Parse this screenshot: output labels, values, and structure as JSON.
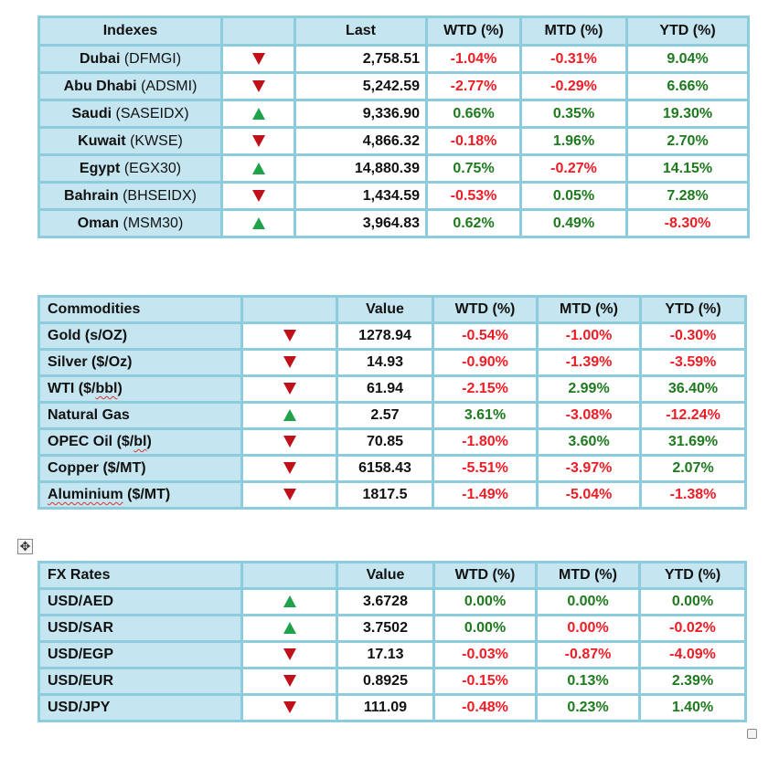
{
  "indexes": {
    "headers": [
      "Indexes",
      "",
      "Last",
      "WTD (%)",
      "MTD (%)",
      "YTD (%)"
    ],
    "rows": [
      {
        "name": "Dubai",
        "code": "(DFMGI)",
        "trend": "down",
        "last": "2,758.51",
        "wtd": "-1.04%",
        "mtd": "-0.31%",
        "ytd": "9.04%"
      },
      {
        "name": "Abu Dhabi",
        "code": "(ADSMI)",
        "trend": "down",
        "last": "5,242.59",
        "wtd": "-2.77%",
        "mtd": "-0.29%",
        "ytd": "6.66%"
      },
      {
        "name": "Saudi",
        "code": "(SASEIDX)",
        "trend": "up",
        "last": "9,336.90",
        "wtd": "0.66%",
        "mtd": "0.35%",
        "ytd": "19.30%"
      },
      {
        "name": "Kuwait",
        "code": "(KWSE)",
        "trend": "down",
        "last": "4,866.32",
        "wtd": "-0.18%",
        "mtd": "1.96%",
        "ytd": "2.70%"
      },
      {
        "name": "Egypt",
        "code": "(EGX30)",
        "trend": "up",
        "last": "14,880.39",
        "wtd": "0.75%",
        "mtd": "-0.27%",
        "ytd": "14.15%"
      },
      {
        "name": "Bahrain",
        "code": "(BHSEIDX)",
        "trend": "down",
        "last": "1,434.59",
        "wtd": "-0.53%",
        "mtd": "0.05%",
        "ytd": "7.28%"
      },
      {
        "name": "Oman",
        "code": "(MSM30)",
        "trend": "up",
        "last": "3,964.83",
        "wtd": "0.62%",
        "mtd": "0.49%",
        "ytd": "-8.30%"
      }
    ]
  },
  "commodities": {
    "headers": [
      "Commodities",
      "",
      "Value",
      "WTD (%)",
      "MTD (%)",
      "YTD (%)"
    ],
    "rows": [
      {
        "name": "Gold (s/OZ)",
        "trend": "down",
        "value": "1278.94",
        "wtd": "-0.54%",
        "mtd": "-1.00%",
        "ytd": "-0.30%"
      },
      {
        "name": "Silver ($/Oz)",
        "trend": "down",
        "value": "14.93",
        "wtd": "-0.90%",
        "mtd": "-1.39%",
        "ytd": "-3.59%"
      },
      {
        "name": "WTI ($/bbl)",
        "trend": "down",
        "value": "61.94",
        "wtd": "-2.15%",
        "mtd": "2.99%",
        "ytd": "36.40%"
      },
      {
        "name": "Natural Gas",
        "trend": "up",
        "value": "2.57",
        "wtd": "3.61%",
        "mtd": "-3.08%",
        "ytd": "-12.24%"
      },
      {
        "name": "OPEC Oil ($/bl)",
        "trend": "down",
        "value": "70.85",
        "wtd": "-1.80%",
        "mtd": "3.60%",
        "ytd": "31.69%"
      },
      {
        "name": "Copper ($/MT)",
        "trend": "down",
        "value": "6158.43",
        "wtd": "-5.51%",
        "mtd": "-3.97%",
        "ytd": "2.07%"
      },
      {
        "name": "Aluminium ($/MT)",
        "trend": "down",
        "value": "1817.5",
        "wtd": "-1.49%",
        "mtd": "-5.04%",
        "ytd": "-1.38%"
      }
    ]
  },
  "fx": {
    "headers": [
      "FX Rates",
      "",
      "Value",
      "WTD (%)",
      "MTD (%)",
      "YTD (%)"
    ],
    "rows": [
      {
        "name": "USD/AED",
        "trend": "up",
        "value": "3.6728",
        "wtd": "0.00%",
        "mtd": "0.00%",
        "ytd": "0.00%",
        "wtd_color": "pos",
        "mtd_color": "pos",
        "ytd_color": "pos"
      },
      {
        "name": "USD/SAR",
        "trend": "up",
        "value": "3.7502",
        "wtd": "0.00%",
        "mtd": "0.00%",
        "ytd": "-0.02%",
        "wtd_color": "pos",
        "mtd_color": "neg",
        "ytd_color": "neg"
      },
      {
        "name": "USD/EGP",
        "trend": "down",
        "value": "17.13",
        "wtd": "-0.03%",
        "mtd": "-0.87%",
        "ytd": "-4.09%"
      },
      {
        "name": "USD/EUR",
        "trend": "down",
        "value": "0.8925",
        "wtd": "-0.15%",
        "mtd": "0.13%",
        "ytd": "2.39%"
      },
      {
        "name": "USD/JPY",
        "trend": "down",
        "value": "111.09",
        "wtd": "-0.48%",
        "mtd": "0.23%",
        "ytd": "1.40%"
      }
    ]
  },
  "colors": {
    "header_bg": "#c5e6f0",
    "border": "#8cccdc",
    "positive": "#1e7a1e",
    "negative": "#ee1c25",
    "arrow_up": "#1fa34a",
    "arrow_down": "#c0111b"
  },
  "icons": {
    "move_handle": "move-arrows-icon",
    "resize_handle": "resize-square-icon",
    "up": "triangle-up-icon",
    "down": "triangle-down-icon"
  },
  "move_handle_glyph": "✥"
}
